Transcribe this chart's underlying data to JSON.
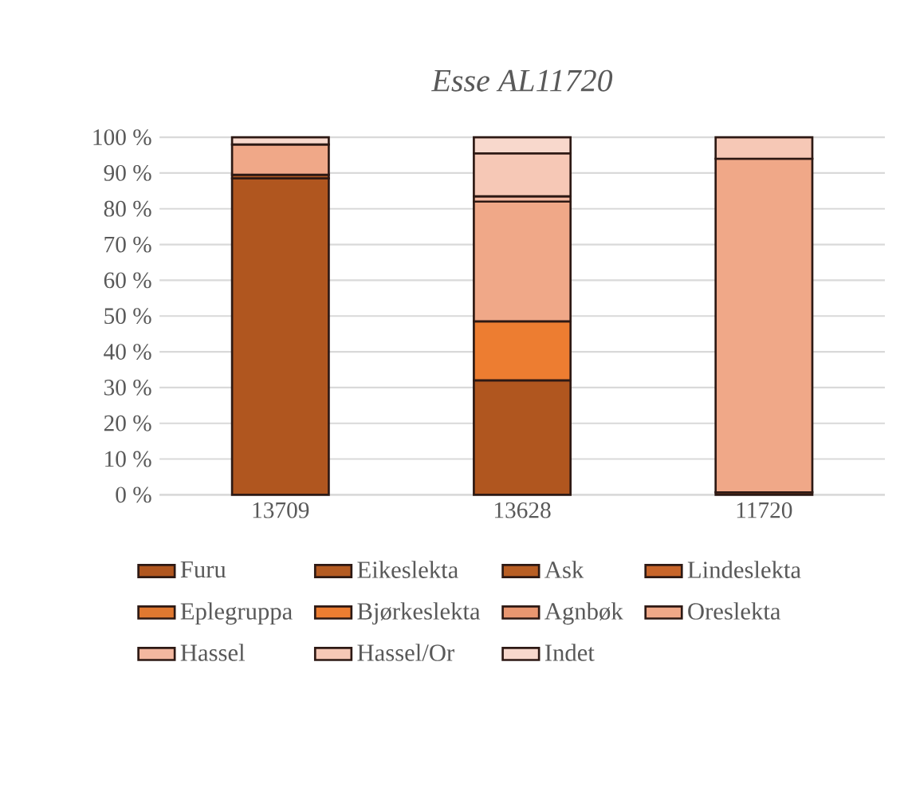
{
  "chart_data": {
    "type": "bar",
    "stacked": true,
    "title": "Esse AL11720",
    "categories": [
      "13709",
      "13628",
      "11720"
    ],
    "series": [
      {
        "name": "Furu",
        "color": "#b0561f",
        "values": [
          88.5,
          32,
          0.7
        ]
      },
      {
        "name": "Eikeslekta",
        "color": "#b45b22",
        "values": [
          1,
          null,
          null
        ]
      },
      {
        "name": "Ask",
        "color": "#b85e24",
        "values": [
          null,
          null,
          null
        ]
      },
      {
        "name": "Lindeslekta",
        "color": "#c8652a",
        "values": [
          null,
          null,
          null
        ]
      },
      {
        "name": "Eplegruppa",
        "color": "#e07830",
        "values": [
          null,
          null,
          null
        ]
      },
      {
        "name": "Bjørkeslekta",
        "color": "#ed7d31",
        "values": [
          null,
          16.5,
          null
        ]
      },
      {
        "name": "Agnbøk",
        "color": "#e99670",
        "values": [
          null,
          null,
          null
        ]
      },
      {
        "name": "Oreslekta",
        "color": "#f0a888",
        "values": [
          8.5,
          33.5,
          93.3
        ]
      },
      {
        "name": "Hassel",
        "color": "#f3b8a0",
        "values": [
          null,
          1.5,
          null
        ]
      },
      {
        "name": "Hassel/Or",
        "color": "#f6c8b6",
        "values": [
          null,
          12,
          6
        ]
      },
      {
        "name": "Indet",
        "color": "#f8d8cc",
        "values": [
          2,
          4.5,
          null
        ]
      }
    ],
    "ylim": [
      0,
      100
    ],
    "yticks": [
      {
        "value": 0,
        "label": "0 %"
      },
      {
        "value": 10,
        "label": "10 %"
      },
      {
        "value": 20,
        "label": "20 %"
      },
      {
        "value": 30,
        "label": "30 %"
      },
      {
        "value": 40,
        "label": "40 %"
      },
      {
        "value": 50,
        "label": "50 %"
      },
      {
        "value": 60,
        "label": "60 %"
      },
      {
        "value": 70,
        "label": "70 %"
      },
      {
        "value": 80,
        "label": "80 %"
      },
      {
        "value": 90,
        "label": "90 %"
      },
      {
        "value": 100,
        "label": "100 %"
      }
    ],
    "grid": "y",
    "legend": "bottom"
  }
}
